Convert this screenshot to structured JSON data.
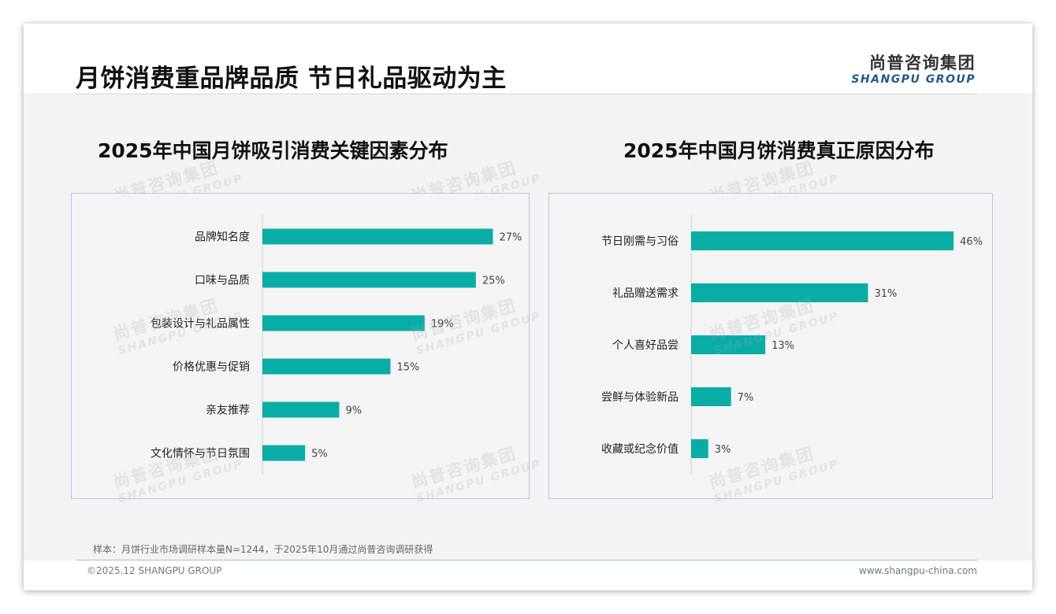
{
  "header": {
    "title": "月饼消费重品牌品质 节日礼品驱动为主",
    "logo_cn": "尚普咨询集团",
    "logo_en": "SHANGPU GROUP"
  },
  "watermark": {
    "cn": "尚普咨询集团",
    "en": "SHANGPU GROUP"
  },
  "footnote": "样本：月饼行业市场调研样本量N=1244，于2025年10月通过尚普咨询调研获得",
  "footer": {
    "copyright": "©2025.12 SHANGPU GROUP",
    "website": "www.shangpu-china.com"
  },
  "colors": {
    "bar": "#0aada6",
    "panel_border": "#b7c8dc"
  },
  "chart_data": [
    {
      "type": "bar",
      "orientation": "horizontal",
      "title": "2025年中国月饼吸引消费关键因素分布",
      "categories": [
        "品牌知名度",
        "口味与品质",
        "包装设计与礼品属性",
        "价格优惠与促销",
        "亲友推荐",
        "文化情怀与节日氛围"
      ],
      "values": [
        27,
        25,
        19,
        15,
        9,
        5
      ],
      "value_labels": [
        "27%",
        "25%",
        "19%",
        "15%",
        "9%",
        "5%"
      ],
      "unit": "%",
      "xlim": [
        0,
        30
      ],
      "grid": false,
      "legend": "none"
    },
    {
      "type": "bar",
      "orientation": "horizontal",
      "title": "2025年中国月饼消费真正原因分布",
      "categories": [
        "节日刚需与习俗",
        "礼品赠送需求",
        "个人喜好品尝",
        "尝鲜与体验新品",
        "收藏或纪念价值"
      ],
      "values": [
        46,
        31,
        13,
        7,
        3
      ],
      "value_labels": [
        "46%",
        "31%",
        "13%",
        "7%",
        "3%"
      ],
      "unit": "%",
      "xlim": [
        0,
        50
      ],
      "grid": false,
      "legend": "none"
    }
  ]
}
